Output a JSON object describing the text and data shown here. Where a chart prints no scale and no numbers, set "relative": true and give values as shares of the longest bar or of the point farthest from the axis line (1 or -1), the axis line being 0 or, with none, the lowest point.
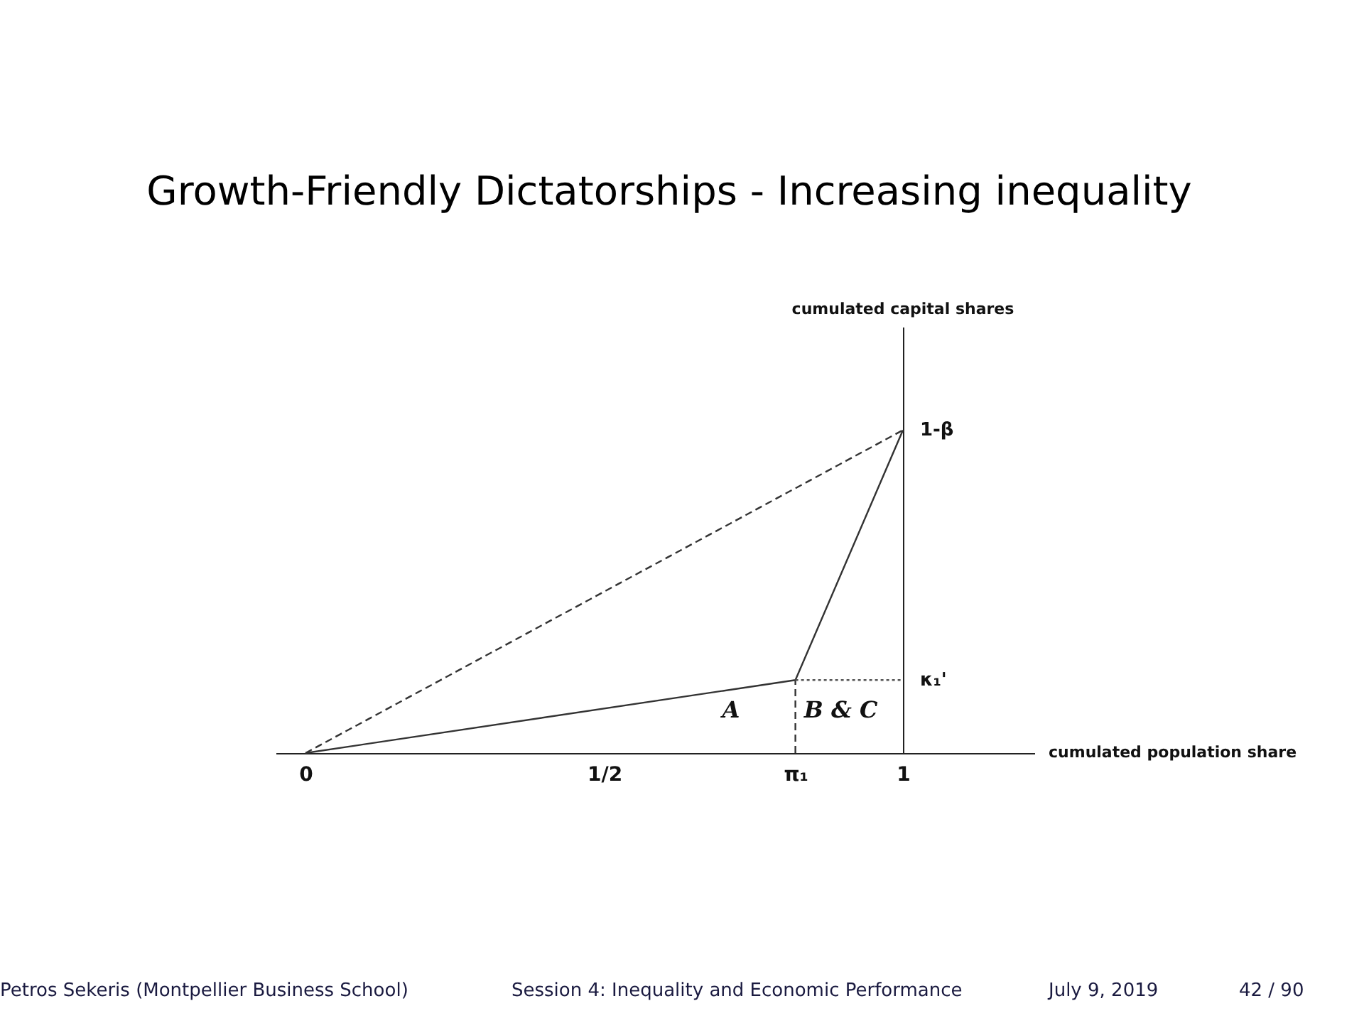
{
  "chart_data": {
    "type": "line",
    "title": "Growth-Friendly Dictatorships - Increasing inequality",
    "xlabel": "cumulated population share",
    "relative": true,
    "xlim": [
      -0.05,
      1.22
    ],
    "xticks": [
      0,
      {
        "value": 0.5,
        "label": "1/2"
      },
      {
        "value": 0.82,
        "label": "π₁"
      },
      1
    ],
    "series": [
      {
        "color": "#333333",
        "x": [
          0,
          0.82,
          1
        ],
        "values": [
          0,
          0.226,
          1
        ],
        "line_style": "solid"
      },
      {
        "color": "#333333",
        "x": [
          0,
          1
        ],
        "values": [
          0,
          1
        ],
        "line_style": "dashed"
      },
      {
        "color": "#333333",
        "x": [
          0.82,
          0.82
        ],
        "values": [
          0,
          0.226
        ],
        "line_style": "dashed"
      },
      {
        "color": "#555555",
        "x": [
          0.82,
          1
        ],
        "values": [
          0.226,
          0.226
        ],
        "line_style": "dotted"
      }
    ],
    "annotations": [
      {
        "text": "1-β",
        "x": 1,
        "y": 1
      },
      {
        "text": "κ₁'",
        "x": 1,
        "y": 0.226
      },
      "A",
      "B & C",
      "cumulated capital shares",
      "Petros Sekeris (Montpellier Business School)",
      "Session 4: Inequality and Economic Performance",
      "July 9, 2019",
      "42 / 90"
    ]
  }
}
